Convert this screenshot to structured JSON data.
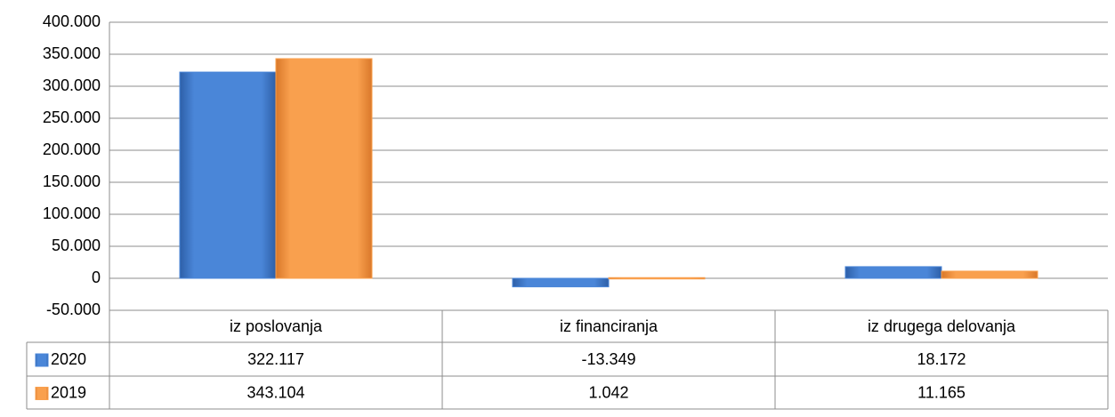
{
  "chart_data": {
    "type": "bar",
    "categories": [
      "iz poslovanja",
      "iz financiranja",
      "iz drugega delovanja"
    ],
    "series": [
      {
        "name": "2020",
        "color": "#4a86d8",
        "values": [
          322117,
          -13349,
          18172
        ],
        "value_labels": [
          "322.117",
          "-13.349",
          "18.172"
        ]
      },
      {
        "name": "2019",
        "color": "#f9a04e",
        "values": [
          343104,
          1042,
          11165
        ],
        "value_labels": [
          "343.104",
          "1.042",
          "11.165"
        ]
      }
    ],
    "ylim": [
      -50000,
      400000
    ],
    "yticks": [
      {
        "value": -50000,
        "label": "-50.000"
      },
      0,
      {
        "value": 50000,
        "label": "50.000"
      },
      {
        "value": 100000,
        "label": "100.000"
      },
      {
        "value": 150000,
        "label": "150.000"
      },
      {
        "value": 200000,
        "label": "200.000"
      },
      {
        "value": 250000,
        "label": "250.000"
      },
      {
        "value": 300000,
        "label": "300.000"
      },
      {
        "value": 350000,
        "label": "350.000"
      },
      {
        "value": 400000,
        "label": "400.000"
      }
    ],
    "grid": true,
    "data_table": true
  }
}
